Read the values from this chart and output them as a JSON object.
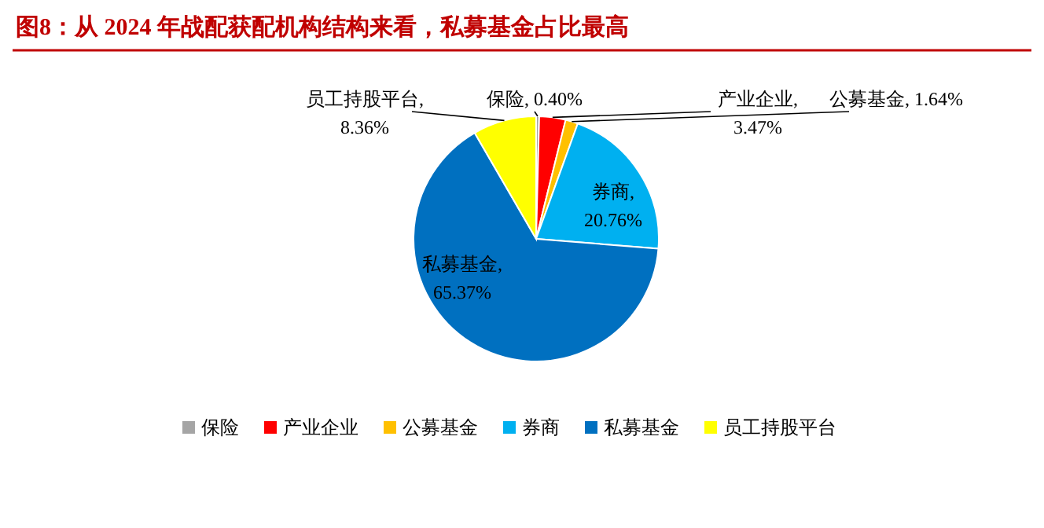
{
  "chart_data": {
    "type": "pie",
    "title": "图8：从 2024 年战配获配机构结构来看，私募基金占比最高",
    "categories": [
      "保险",
      "产业企业",
      "公募基金",
      "券商",
      "私募基金",
      "员工持股平台"
    ],
    "values": [
      0.4,
      3.47,
      1.64,
      20.76,
      65.37,
      8.36
    ],
    "value_labels": [
      "保险, 0.40%",
      "产业企业, 3.47%",
      "公募基金, 1.64%",
      "券商, 20.76%",
      "私募基金, 65.37%",
      "员工持股平台, 8.36%"
    ],
    "colors": [
      "#a5a5a5",
      "#ff0000",
      "#ffc000",
      "#00b0f0",
      "#0070c0",
      "#ffff00"
    ],
    "legend": "bottom"
  }
}
